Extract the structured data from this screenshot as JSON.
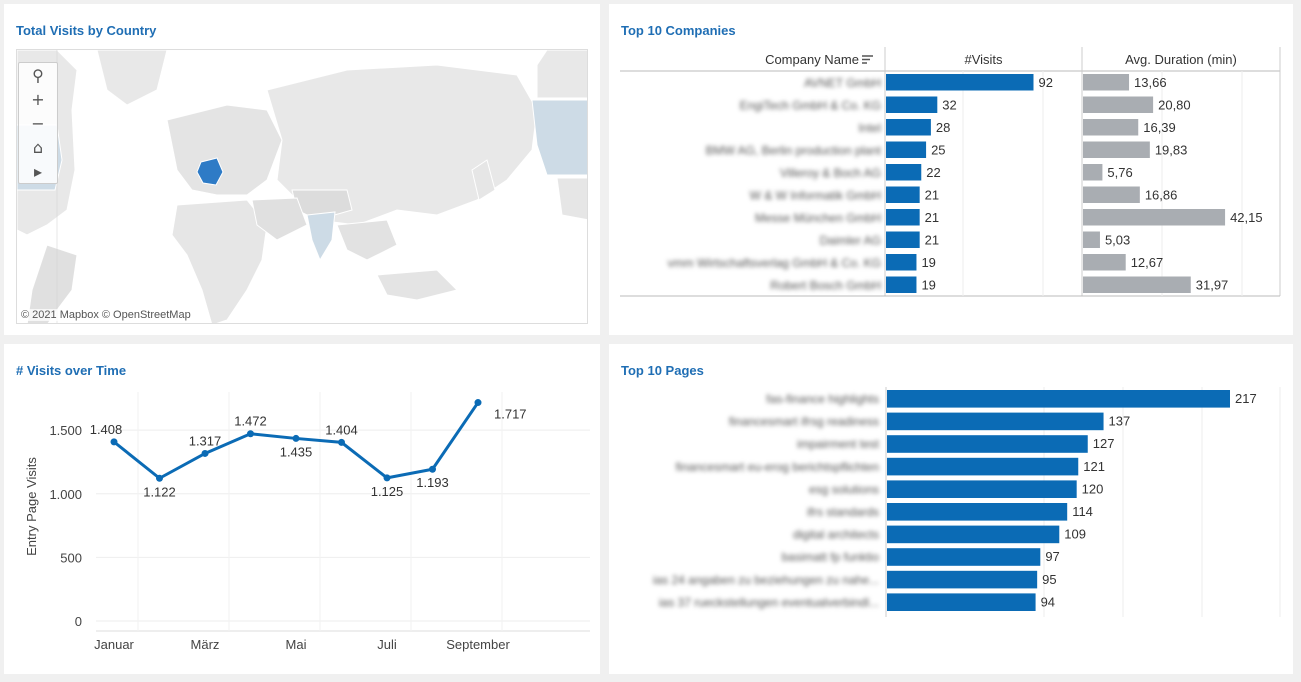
{
  "panels": {
    "map": {
      "title": "Total Visits by Country",
      "attribution": "© 2021 Mapbox  © OpenStreetMap"
    },
    "companies": {
      "title": "Top 10 Companies"
    },
    "time": {
      "title": "# Visits over Time"
    },
    "pages": {
      "title": "Top 10 Pages"
    }
  },
  "map_controls": [
    {
      "icon": "search-icon",
      "glyph": "⚲"
    },
    {
      "icon": "zoom-in-icon",
      "glyph": "+"
    },
    {
      "icon": "zoom-out-icon",
      "glyph": "−"
    },
    {
      "icon": "home-icon",
      "glyph": "⌂"
    },
    {
      "icon": "play-icon",
      "glyph": "▸"
    }
  ],
  "colors": {
    "accent": "#0b6bb5",
    "gray_bar": "#a9adb2",
    "map_highlight": "#cddbe6",
    "map_strong": "#2e7bc6"
  },
  "chart_data": [
    {
      "type": "table",
      "headers": [
        "Company Name",
        "#Visits",
        "Avg. Duration (min)"
      ],
      "rows": [
        {
          "name": "AVNET GmbH",
          "visits": 92,
          "duration": "13,66",
          "duration_value": 13.66
        },
        {
          "name": "EngiTech GmbH & Co. KG",
          "visits": 32,
          "duration": "20,80",
          "duration_value": 20.8
        },
        {
          "name": "Intel",
          "visits": 28,
          "duration": "16,39",
          "duration_value": 16.39
        },
        {
          "name": "BMW AG, Berlin production plant",
          "visits": 25,
          "duration": "19,83",
          "duration_value": 19.83
        },
        {
          "name": "Villeroy & Boch AG",
          "visits": 22,
          "duration": "5,76",
          "duration_value": 5.76
        },
        {
          "name": "W & W Informatik GmbH",
          "visits": 21,
          "duration": "16,86",
          "duration_value": 16.86
        },
        {
          "name": "Messe München GmbH",
          "visits": 21,
          "duration": "42,15",
          "duration_value": 42.15
        },
        {
          "name": "Daimler AG",
          "visits": 21,
          "duration": "5,03",
          "duration_value": 5.03
        },
        {
          "name": "vmm Wirtschaftsverlag GmbH & Co. KG",
          "visits": 19,
          "duration": "12,67",
          "duration_value": 12.67
        },
        {
          "name": "Robert Bosch GmbH",
          "visits": 19,
          "duration": "31,97",
          "duration_value": 31.97
        }
      ]
    },
    {
      "type": "line",
      "x": [
        "Januar",
        "Februar",
        "März",
        "April",
        "Mai",
        "Juni",
        "Juli",
        "August",
        "September"
      ],
      "tick_labels": [
        "Januar",
        "März",
        "Mai",
        "Juli",
        "September"
      ],
      "values": [
        1408,
        1122,
        1317,
        1472,
        1435,
        1404,
        1125,
        1193,
        1717
      ],
      "labels": [
        "1.408",
        "1.122",
        "1.317",
        "1.472",
        "1.435",
        "1.404",
        "1.125",
        "1.193",
        "1.717"
      ],
      "ylabel": "Entry Page Visits",
      "yticks": [
        0,
        500,
        1000,
        1500
      ],
      "ytick_labels": [
        "0",
        "500",
        "1.000",
        "1.500"
      ],
      "ylim": [
        0,
        1800
      ]
    },
    {
      "type": "bar",
      "categories": [
        "fas-finance highlights",
        "financesmart ifrsg readiness",
        "impairment test",
        "financesmart eu-erog berichtspflichten",
        "esg solutions",
        "ifrs standards",
        "digital architects",
        "basimatt fp funktio",
        "ias 24 angaben zu beziehungen zu nahe...",
        "ias 37 rueckstellungen eventualverbindl..."
      ],
      "values": [
        217,
        137,
        127,
        121,
        120,
        114,
        109,
        97,
        95,
        94
      ],
      "xlim": [
        0,
        250
      ]
    }
  ]
}
